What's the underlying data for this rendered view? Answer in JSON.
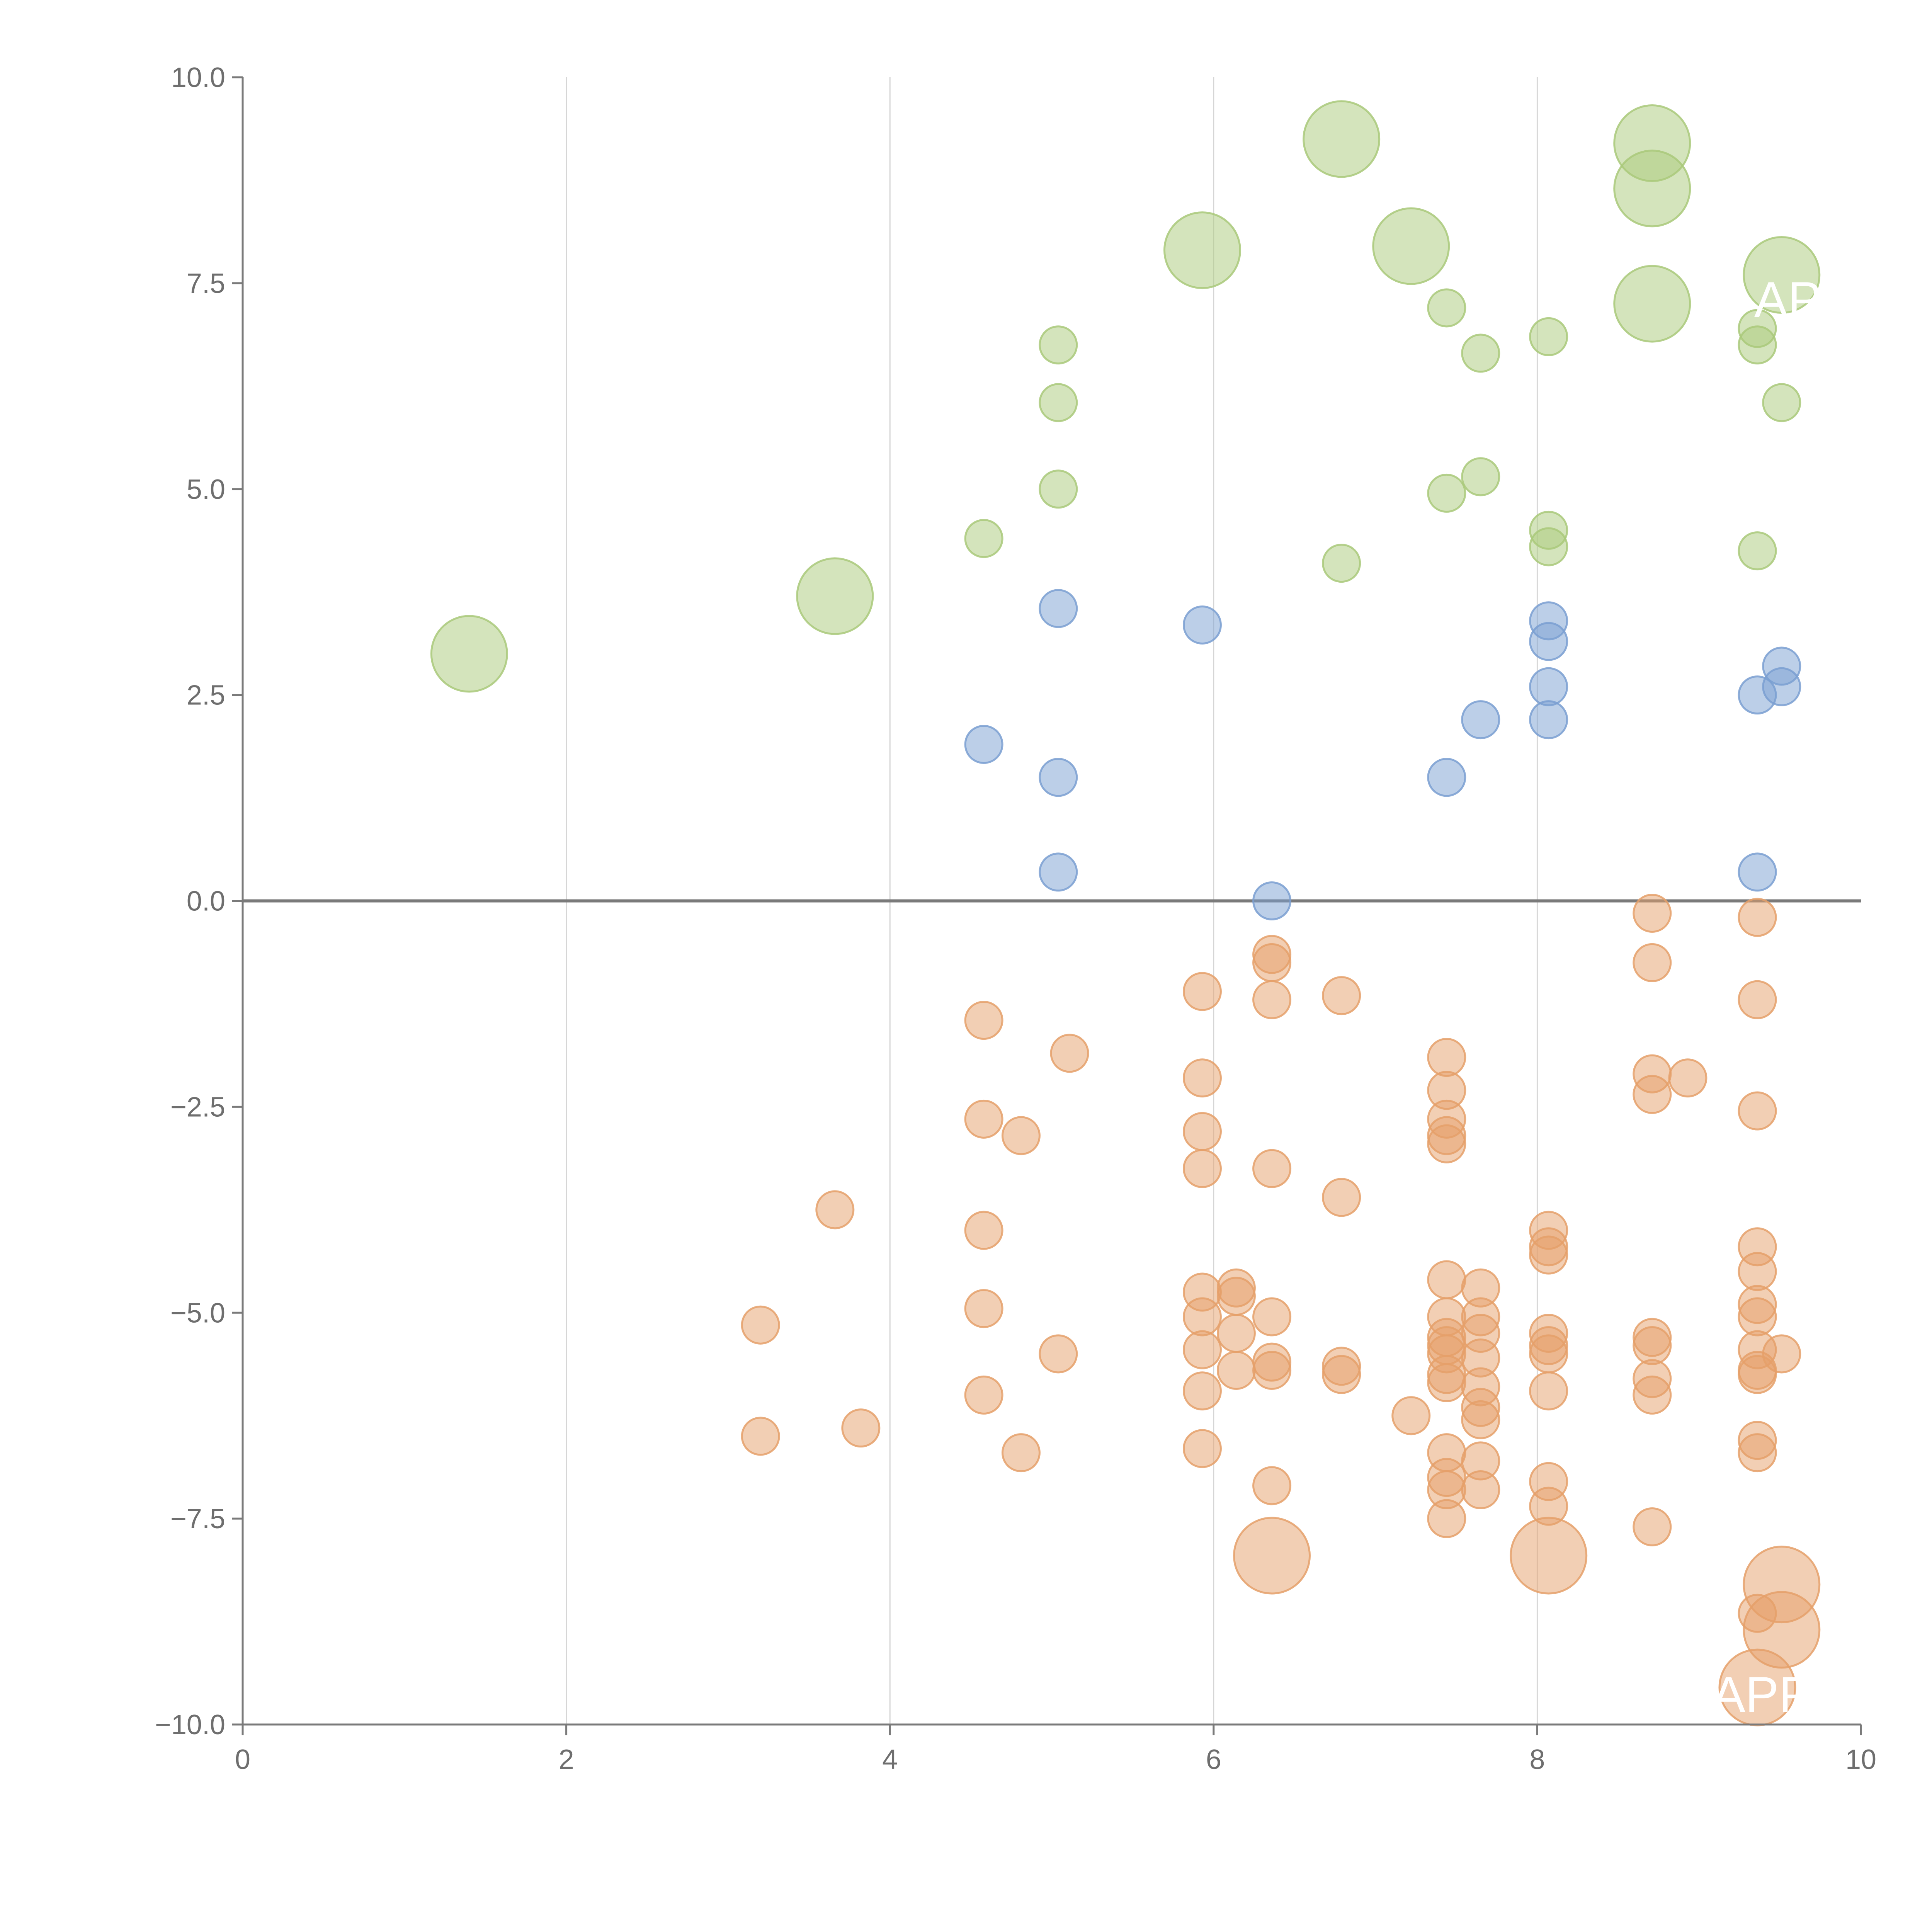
{
  "chart_data": {
    "type": "scatter",
    "title": "",
    "xlabel": "",
    "ylabel": "",
    "xlim": [
      0,
      10
    ],
    "ylim": [
      -10,
      10
    ],
    "x_ticks": [
      "0",
      "2",
      "4",
      "6",
      "8",
      "10"
    ],
    "y_ticks": [
      "10.0",
      "7.5",
      "5.0",
      "2.5",
      "0.0",
      "−2.5",
      "−5.0",
      "−7.5",
      "−10.0"
    ],
    "grid": "vertical",
    "legend": "none",
    "colors": {
      "green": "#a9c97a",
      "blue": "#7a9fd1",
      "orange": "#e5a06a"
    },
    "bubble_annotations": [
      "AP",
      "APP"
    ],
    "series": [
      {
        "name": "green",
        "color": "#a9c97a",
        "points": [
          {
            "x": 1.4,
            "y": 3.0,
            "size": "large"
          },
          {
            "x": 3.66,
            "y": 3.7,
            "size": "large"
          },
          {
            "x": 4.58,
            "y": 4.4,
            "size": "small"
          },
          {
            "x": 5.04,
            "y": 6.75,
            "size": "small"
          },
          {
            "x": 5.04,
            "y": 6.05,
            "size": "small"
          },
          {
            "x": 5.04,
            "y": 5.0,
            "size": "small"
          },
          {
            "x": 5.93,
            "y": 7.9,
            "size": "large"
          },
          {
            "x": 6.79,
            "y": 9.25,
            "size": "large"
          },
          {
            "x": 6.79,
            "y": 4.1,
            "size": "small"
          },
          {
            "x": 7.22,
            "y": 7.95,
            "size": "large"
          },
          {
            "x": 7.44,
            "y": 7.2,
            "size": "small"
          },
          {
            "x": 7.44,
            "y": 4.95,
            "size": "small"
          },
          {
            "x": 7.65,
            "y": 6.65,
            "size": "small"
          },
          {
            "x": 7.65,
            "y": 5.15,
            "size": "small"
          },
          {
            "x": 8.07,
            "y": 6.85,
            "size": "small"
          },
          {
            "x": 8.07,
            "y": 4.5,
            "size": "small"
          },
          {
            "x": 8.07,
            "y": 4.3,
            "size": "small"
          },
          {
            "x": 8.71,
            "y": 9.2,
            "size": "large"
          },
          {
            "x": 8.71,
            "y": 8.65,
            "size": "large"
          },
          {
            "x": 8.71,
            "y": 7.25,
            "size": "large"
          },
          {
            "x": 9.36,
            "y": 6.95,
            "size": "small"
          },
          {
            "x": 9.36,
            "y": 6.75,
            "size": "small"
          },
          {
            "x": 9.36,
            "y": 4.25,
            "size": "small"
          },
          {
            "x": 9.51,
            "y": 7.6,
            "size": "large"
          },
          {
            "x": 9.51,
            "y": 6.05,
            "size": "small"
          }
        ]
      },
      {
        "name": "blue",
        "color": "#7a9fd1",
        "points": [
          {
            "x": 4.58,
            "y": 1.9,
            "size": "small"
          },
          {
            "x": 5.04,
            "y": 3.55,
            "size": "small"
          },
          {
            "x": 5.04,
            "y": 1.5,
            "size": "small"
          },
          {
            "x": 5.04,
            "y": 0.35,
            "size": "small"
          },
          {
            "x": 5.93,
            "y": 3.35,
            "size": "small"
          },
          {
            "x": 6.36,
            "y": 0.0,
            "size": "small"
          },
          {
            "x": 7.44,
            "y": 1.5,
            "size": "small"
          },
          {
            "x": 7.65,
            "y": 2.2,
            "size": "small"
          },
          {
            "x": 8.07,
            "y": 3.4,
            "size": "small"
          },
          {
            "x": 8.07,
            "y": 3.15,
            "size": "small"
          },
          {
            "x": 8.07,
            "y": 2.6,
            "size": "small"
          },
          {
            "x": 8.07,
            "y": 2.2,
            "size": "small"
          },
          {
            "x": 9.36,
            "y": 2.5,
            "size": "small"
          },
          {
            "x": 9.36,
            "y": 0.35,
            "size": "small"
          },
          {
            "x": 9.51,
            "y": 2.85,
            "size": "small"
          },
          {
            "x": 9.51,
            "y": 2.6,
            "size": "small"
          }
        ]
      },
      {
        "name": "orange",
        "color": "#e5a06a",
        "points": [
          {
            "x": 3.2,
            "y": -5.15,
            "size": "small"
          },
          {
            "x": 3.2,
            "y": -6.5,
            "size": "small"
          },
          {
            "x": 3.66,
            "y": -3.75,
            "size": "small"
          },
          {
            "x": 3.82,
            "y": -6.4,
            "size": "small"
          },
          {
            "x": 4.58,
            "y": -1.45,
            "size": "small"
          },
          {
            "x": 4.58,
            "y": -2.65,
            "size": "small"
          },
          {
            "x": 4.58,
            "y": -4.0,
            "size": "small"
          },
          {
            "x": 4.58,
            "y": -4.95,
            "size": "small"
          },
          {
            "x": 4.58,
            "y": -6.0,
            "size": "small"
          },
          {
            "x": 4.81,
            "y": -2.85,
            "size": "small"
          },
          {
            "x": 4.81,
            "y": -6.7,
            "size": "small"
          },
          {
            "x": 5.04,
            "y": -5.5,
            "size": "small"
          },
          {
            "x": 5.11,
            "y": -1.85,
            "size": "small"
          },
          {
            "x": 5.93,
            "y": -1.1,
            "size": "small"
          },
          {
            "x": 5.93,
            "y": -2.15,
            "size": "small"
          },
          {
            "x": 5.93,
            "y": -2.8,
            "size": "small"
          },
          {
            "x": 5.93,
            "y": -3.25,
            "size": "small"
          },
          {
            "x": 5.93,
            "y": -4.75,
            "size": "small"
          },
          {
            "x": 5.93,
            "y": -5.05,
            "size": "small"
          },
          {
            "x": 5.93,
            "y": -5.45,
            "size": "small"
          },
          {
            "x": 5.93,
            "y": -5.95,
            "size": "small"
          },
          {
            "x": 5.93,
            "y": -6.65,
            "size": "small"
          },
          {
            "x": 6.14,
            "y": -4.7,
            "size": "small"
          },
          {
            "x": 6.14,
            "y": -4.8,
            "size": "small"
          },
          {
            "x": 6.14,
            "y": -5.25,
            "size": "small"
          },
          {
            "x": 6.14,
            "y": -5.7,
            "size": "small"
          },
          {
            "x": 6.36,
            "y": -0.65,
            "size": "small"
          },
          {
            "x": 6.36,
            "y": -0.75,
            "size": "small"
          },
          {
            "x": 6.36,
            "y": -1.2,
            "size": "small"
          },
          {
            "x": 6.36,
            "y": -3.25,
            "size": "small"
          },
          {
            "x": 6.36,
            "y": -5.05,
            "size": "small"
          },
          {
            "x": 6.36,
            "y": -5.6,
            "size": "small"
          },
          {
            "x": 6.36,
            "y": -5.7,
            "size": "small"
          },
          {
            "x": 6.36,
            "y": -7.1,
            "size": "small"
          },
          {
            "x": 6.36,
            "y": -7.95,
            "size": "large"
          },
          {
            "x": 6.79,
            "y": -1.15,
            "size": "small"
          },
          {
            "x": 6.79,
            "y": -3.6,
            "size": "small"
          },
          {
            "x": 6.79,
            "y": -5.65,
            "size": "small"
          },
          {
            "x": 6.79,
            "y": -5.75,
            "size": "small"
          },
          {
            "x": 7.22,
            "y": -6.25,
            "size": "small"
          },
          {
            "x": 7.44,
            "y": -1.9,
            "size": "small"
          },
          {
            "x": 7.44,
            "y": -2.3,
            "size": "small"
          },
          {
            "x": 7.44,
            "y": -2.65,
            "size": "small"
          },
          {
            "x": 7.44,
            "y": -2.85,
            "size": "small"
          },
          {
            "x": 7.44,
            "y": -2.95,
            "size": "small"
          },
          {
            "x": 7.44,
            "y": -4.6,
            "size": "small"
          },
          {
            "x": 7.44,
            "y": -5.05,
            "size": "small"
          },
          {
            "x": 7.44,
            "y": -5.3,
            "size": "small"
          },
          {
            "x": 7.44,
            "y": -5.4,
            "size": "small"
          },
          {
            "x": 7.44,
            "y": -5.5,
            "size": "small"
          },
          {
            "x": 7.44,
            "y": -5.75,
            "size": "small"
          },
          {
            "x": 7.44,
            "y": -5.85,
            "size": "small"
          },
          {
            "x": 7.44,
            "y": -6.7,
            "size": "small"
          },
          {
            "x": 7.44,
            "y": -7.0,
            "size": "small"
          },
          {
            "x": 7.44,
            "y": -7.15,
            "size": "small"
          },
          {
            "x": 7.44,
            "y": -7.5,
            "size": "small"
          },
          {
            "x": 7.65,
            "y": -4.7,
            "size": "small"
          },
          {
            "x": 7.65,
            "y": -5.05,
            "size": "small"
          },
          {
            "x": 7.65,
            "y": -5.25,
            "size": "small"
          },
          {
            "x": 7.65,
            "y": -5.55,
            "size": "small"
          },
          {
            "x": 7.65,
            "y": -5.9,
            "size": "small"
          },
          {
            "x": 7.65,
            "y": -6.15,
            "size": "small"
          },
          {
            "x": 7.65,
            "y": -6.3,
            "size": "small"
          },
          {
            "x": 7.65,
            "y": -6.8,
            "size": "small"
          },
          {
            "x": 7.65,
            "y": -7.15,
            "size": "small"
          },
          {
            "x": 8.07,
            "y": -4.0,
            "size": "small"
          },
          {
            "x": 8.07,
            "y": -4.2,
            "size": "small"
          },
          {
            "x": 8.07,
            "y": -4.3,
            "size": "small"
          },
          {
            "x": 8.07,
            "y": -5.25,
            "size": "small"
          },
          {
            "x": 8.07,
            "y": -5.4,
            "size": "small"
          },
          {
            "x": 8.07,
            "y": -5.5,
            "size": "small"
          },
          {
            "x": 8.07,
            "y": -5.95,
            "size": "small"
          },
          {
            "x": 8.07,
            "y": -7.05,
            "size": "small"
          },
          {
            "x": 8.07,
            "y": -7.35,
            "size": "small"
          },
          {
            "x": 8.07,
            "y": -7.95,
            "size": "large"
          },
          {
            "x": 8.71,
            "y": -0.15,
            "size": "small"
          },
          {
            "x": 8.71,
            "y": -0.75,
            "size": "small"
          },
          {
            "x": 8.71,
            "y": -2.1,
            "size": "small"
          },
          {
            "x": 8.71,
            "y": -2.35,
            "size": "small"
          },
          {
            "x": 8.71,
            "y": -5.3,
            "size": "small"
          },
          {
            "x": 8.71,
            "y": -5.4,
            "size": "small"
          },
          {
            "x": 8.71,
            "y": -5.8,
            "size": "small"
          },
          {
            "x": 8.71,
            "y": -6.0,
            "size": "small"
          },
          {
            "x": 8.71,
            "y": -7.6,
            "size": "small"
          },
          {
            "x": 8.93,
            "y": -2.15,
            "size": "small"
          },
          {
            "x": 9.36,
            "y": -0.2,
            "size": "small"
          },
          {
            "x": 9.36,
            "y": -1.2,
            "size": "small"
          },
          {
            "x": 9.36,
            "y": -2.55,
            "size": "small"
          },
          {
            "x": 9.36,
            "y": -4.2,
            "size": "small"
          },
          {
            "x": 9.36,
            "y": -4.5,
            "size": "small"
          },
          {
            "x": 9.36,
            "y": -4.9,
            "size": "small"
          },
          {
            "x": 9.36,
            "y": -5.05,
            "size": "small"
          },
          {
            "x": 9.36,
            "y": -5.45,
            "size": "small"
          },
          {
            "x": 9.36,
            "y": -5.7,
            "size": "small"
          },
          {
            "x": 9.36,
            "y": -5.75,
            "size": "small"
          },
          {
            "x": 9.36,
            "y": -6.55,
            "size": "small"
          },
          {
            "x": 9.36,
            "y": -6.7,
            "size": "small"
          },
          {
            "x": 9.36,
            "y": -8.65,
            "size": "small"
          },
          {
            "x": 9.36,
            "y": -9.55,
            "size": "large"
          },
          {
            "x": 9.51,
            "y": -5.5,
            "size": "small"
          },
          {
            "x": 9.51,
            "y": -8.3,
            "size": "large"
          },
          {
            "x": 9.51,
            "y": -8.85,
            "size": "large"
          }
        ]
      }
    ]
  }
}
